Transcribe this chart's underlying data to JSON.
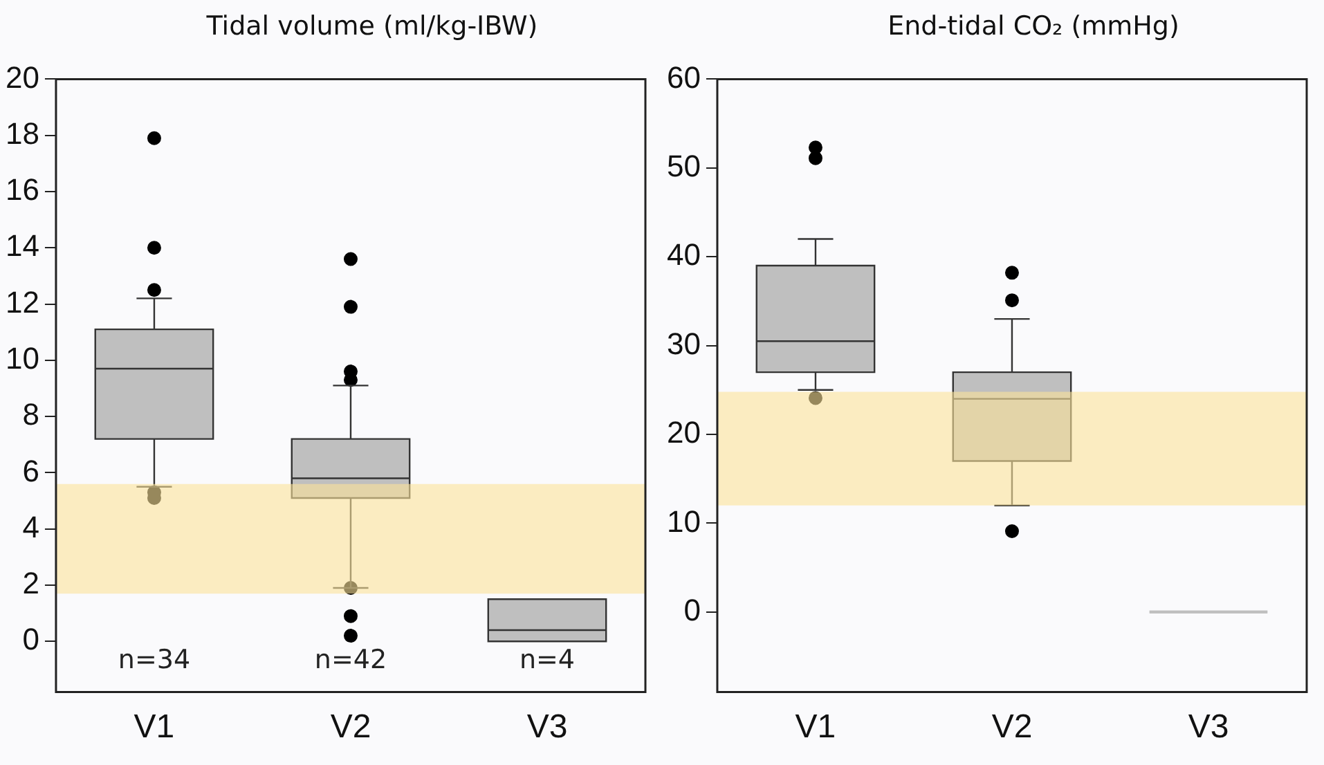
{
  "chart_data": [
    {
      "type": "box",
      "title": "Tidal volume (ml/kg-IBW)",
      "categories": [
        "V1",
        "V2",
        "V3"
      ],
      "series": [
        {
          "color": "#bfbfbf",
          "boxes": [
            {
              "low": 5.5,
              "q1": 7.2,
              "median": 9.7,
              "q3": 11.1,
              "high": 12.2,
              "outliers": [
                17.9,
                14.0,
                12.5,
                5.3,
                5.1
              ]
            },
            {
              "low": 1.9,
              "q1": 5.1,
              "median": 5.8,
              "q3": 7.2,
              "high": 9.1,
              "outliers": [
                13.6,
                11.9,
                9.6,
                9.3,
                1.9,
                0.9,
                0.2
              ]
            },
            {
              "low": 0,
              "q1": 0,
              "median": 0.4,
              "q3": 1.5,
              "high": 1.5
            }
          ]
        }
      ],
      "ylim": [
        -1.8,
        20
      ],
      "yticks": [
        0,
        2,
        4,
        6,
        8,
        10,
        12,
        14,
        16,
        18,
        20
      ],
      "marker": "circle",
      "grid": false,
      "legend": false,
      "bands": [
        {
          "axis": "y",
          "from": 1.7,
          "to": 5.6,
          "color": "#fce29a"
        }
      ],
      "annotations": [
        "n=34",
        "n=42",
        "n=4"
      ]
    },
    {
      "type": "box",
      "title": "End-tidal CO₂ (mmHg)",
      "categories": [
        "V1",
        "V2",
        "V3"
      ],
      "series": [
        {
          "color": "#bfbfbf",
          "boxes": [
            {
              "low": 25,
              "q1": 27,
              "median": 30.5,
              "q3": 39,
              "high": 42,
              "outliers": [
                52.3,
                51.1,
                24.1
              ]
            },
            {
              "low": 12,
              "q1": 17,
              "median": 24,
              "q3": 27,
              "high": 33,
              "outliers": [
                38.2,
                35.1,
                9.1
              ]
            },
            {
              "low": 0,
              "q1": 0,
              "median": 0,
              "q3": 0,
              "high": 0
            }
          ]
        }
      ],
      "ylim": [
        -9,
        60
      ],
      "yticks": [
        0,
        10,
        20,
        30,
        40,
        50,
        60
      ],
      "marker": "circle",
      "grid": false,
      "legend": false,
      "bands": [
        {
          "axis": "y",
          "from": 12,
          "to": 24.8,
          "color": "#fce29a"
        }
      ]
    }
  ]
}
